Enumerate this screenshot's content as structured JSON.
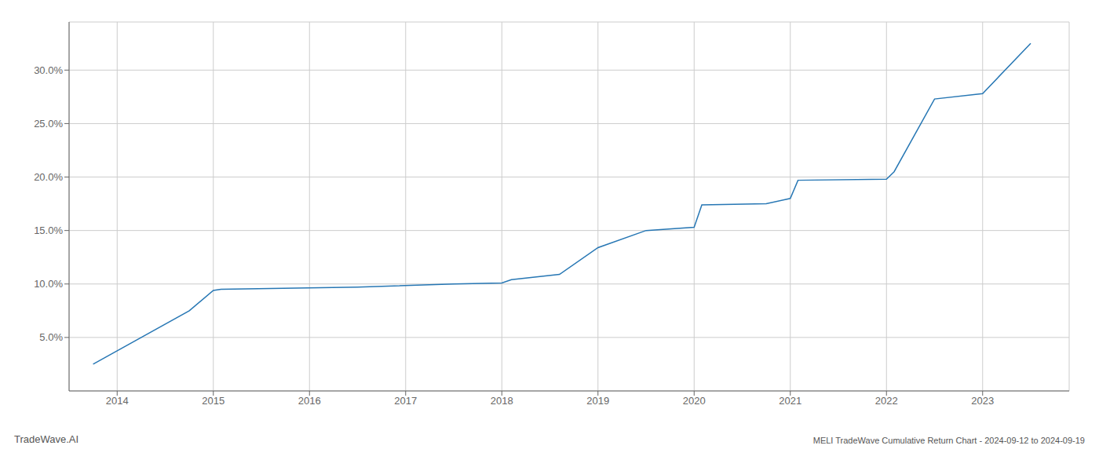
{
  "chart_data": {
    "type": "line",
    "title": "MELI TradeWave Cumulative Return Chart - 2024-09-12 to 2024-09-19",
    "annotations": [
      "TradeWave.AI"
    ],
    "x": [
      2013.75,
      2014.75,
      2015.0,
      2015.08,
      2016.5,
      2017.5,
      2018.0,
      2018.1,
      2018.6,
      2019.0,
      2019.5,
      2020.0,
      2020.08,
      2020.75,
      2021.0,
      2021.08,
      2022.0,
      2022.08,
      2022.5,
      2023.0,
      2023.5
    ],
    "values": [
      2.5,
      7.5,
      9.4,
      9.5,
      9.7,
      10.0,
      10.1,
      10.4,
      10.9,
      13.4,
      15.0,
      15.3,
      17.4,
      17.5,
      18.0,
      19.7,
      19.8,
      20.5,
      27.3,
      27.8,
      32.5
    ],
    "color": "#2777b4",
    "xlim": [
      2013.5,
      2023.9
    ],
    "ylim": [
      0.0,
      34.5
    ],
    "xticks": [
      2014,
      2015,
      2016,
      2017,
      2018,
      2019,
      2020,
      2021,
      2022,
      2023
    ],
    "yticks": [
      {
        "value": 5.0,
        "label": "5.0%"
      },
      {
        "value": 10.0,
        "label": "10.0%"
      },
      {
        "value": 15.0,
        "label": "15.0%"
      },
      {
        "value": 20.0,
        "label": "20.0%"
      },
      {
        "value": 25.0,
        "label": "25.0%"
      },
      {
        "value": 30.0,
        "label": "30.0%"
      }
    ],
    "grid": true
  }
}
